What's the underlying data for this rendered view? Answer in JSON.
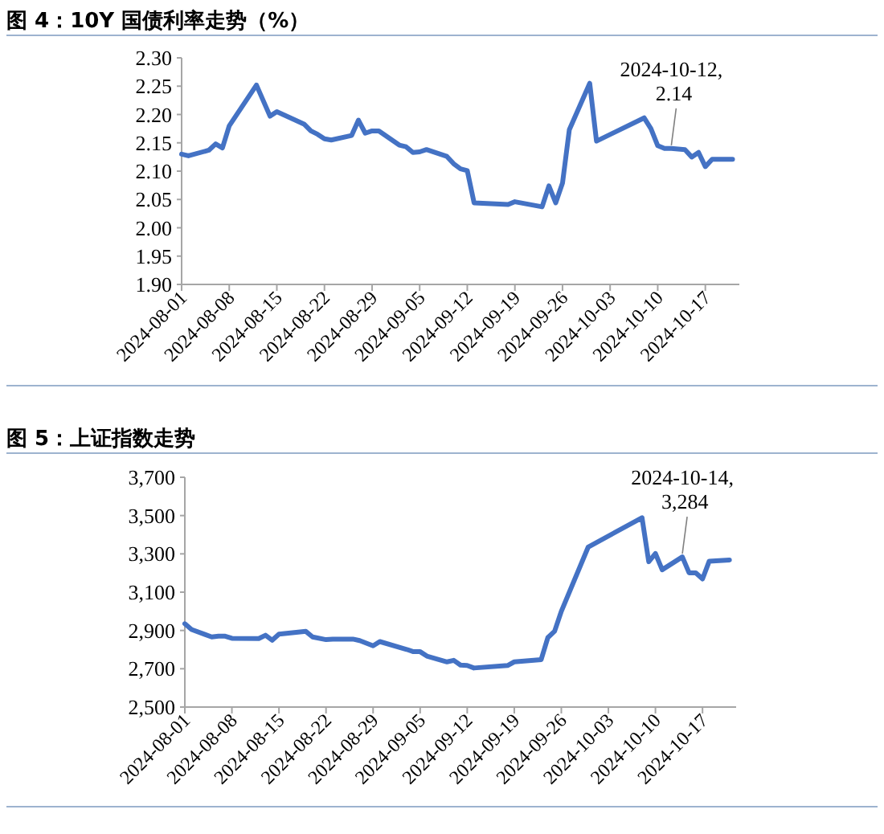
{
  "chart_data": [
    {
      "type": "line",
      "title": "图 4：10Y 国债利率走势（%）",
      "x": [
        "2024-08-01",
        "2024-08-02",
        "2024-08-05",
        "2024-08-06",
        "2024-08-07",
        "2024-08-08",
        "2024-08-12",
        "2024-08-14",
        "2024-08-15",
        "2024-08-19",
        "2024-08-20",
        "2024-08-21",
        "2024-08-22",
        "2024-08-23",
        "2024-08-26",
        "2024-08-27",
        "2024-08-28",
        "2024-08-29",
        "2024-08-30",
        "2024-09-02",
        "2024-09-03",
        "2024-09-04",
        "2024-09-05",
        "2024-09-06",
        "2024-09-09",
        "2024-09-10",
        "2024-09-11",
        "2024-09-12",
        "2024-09-13",
        "2024-09-18",
        "2024-09-19",
        "2024-09-23",
        "2024-09-24",
        "2024-09-25",
        "2024-09-26",
        "2024-09-27",
        "2024-09-30",
        "2024-10-01",
        "2024-10-08",
        "2024-10-09",
        "2024-10-10",
        "2024-10-11",
        "2024-10-12",
        "2024-10-14",
        "2024-10-15",
        "2024-10-16",
        "2024-10-17",
        "2024-10-18",
        "2024-10-21"
      ],
      "series": [
        {
          "color": "#4472c4",
          "values": [
            2.13,
            2.127,
            2.137,
            2.148,
            2.141,
            2.18,
            2.252,
            2.197,
            2.205,
            2.183,
            2.171,
            2.165,
            2.157,
            2.155,
            2.163,
            2.19,
            2.167,
            2.171,
            2.171,
            2.146,
            2.143,
            2.133,
            2.134,
            2.138,
            2.126,
            2.113,
            2.104,
            2.101,
            2.044,
            2.041,
            2.046,
            2.037,
            2.074,
            2.044,
            2.079,
            2.173,
            2.255,
            2.153,
            2.194,
            2.175,
            2.145,
            2.14,
            2.14,
            2.138,
            2.125,
            2.133,
            2.108,
            2.121,
            2.121
          ]
        }
      ],
      "xlim": [
        "2024-08-01",
        "2024-10-22"
      ],
      "xticks": [
        "2024-08-01",
        "2024-08-08",
        "2024-08-15",
        "2024-08-22",
        "2024-08-29",
        "2024-09-05",
        "2024-09-12",
        "2024-09-19",
        "2024-09-26",
        "2024-10-03",
        "2024-10-10",
        "2024-10-17"
      ],
      "ylim": [
        1.9,
        2.3
      ],
      "yticks": [
        {
          "value": 1.9,
          "label": "1.90"
        },
        {
          "value": 1.95,
          "label": "1.95"
        },
        {
          "value": 2.0,
          "label": "2.00"
        },
        {
          "value": 2.05,
          "label": "2.05"
        },
        {
          "value": 2.1,
          "label": "2.10"
        },
        {
          "value": 2.15,
          "label": "2.15"
        },
        {
          "value": 2.2,
          "label": "2.20"
        },
        {
          "value": 2.25,
          "label": "2.25"
        },
        {
          "value": 2.3,
          "label": "2.30"
        }
      ],
      "annotations": [
        {
          "text": "2024-10-12, 2.14",
          "x": "2024-10-12",
          "y": 2.14
        }
      ],
      "grid": false,
      "marker": "none",
      "line_style": "solid"
    },
    {
      "type": "line",
      "title": "图 5：上证指数走势",
      "x": [
        "2024-08-01",
        "2024-08-02",
        "2024-08-05",
        "2024-08-06",
        "2024-08-07",
        "2024-08-08",
        "2024-08-12",
        "2024-08-13",
        "2024-08-14",
        "2024-08-15",
        "2024-08-19",
        "2024-08-20",
        "2024-08-22",
        "2024-08-23",
        "2024-08-26",
        "2024-08-27",
        "2024-08-29",
        "2024-08-30",
        "2024-09-03",
        "2024-09-04",
        "2024-09-05",
        "2024-09-06",
        "2024-09-09",
        "2024-09-10",
        "2024-09-11",
        "2024-09-12",
        "2024-09-13",
        "2024-09-18",
        "2024-09-19",
        "2024-09-23",
        "2024-09-24",
        "2024-09-25",
        "2024-09-26",
        "2024-09-30",
        "2024-10-08",
        "2024-10-09",
        "2024-10-10",
        "2024-10-11",
        "2024-10-14",
        "2024-10-15",
        "2024-10-16",
        "2024-10-17",
        "2024-10-18",
        "2024-10-21"
      ],
      "series": [
        {
          "color": "#4472c4",
          "values": [
            2935,
            2905,
            2866,
            2870,
            2870,
            2859,
            2858,
            2875,
            2849,
            2881,
            2895,
            2866,
            2852,
            2855,
            2855,
            2847,
            2820,
            2842,
            2801,
            2789,
            2789,
            2766,
            2736,
            2744,
            2719,
            2717,
            2704,
            2717,
            2736,
            2748,
            2863,
            2896,
            3000,
            3336,
            3489,
            3259,
            3302,
            3217,
            3284,
            3201,
            3201,
            3169,
            3262,
            3268
          ]
        }
      ],
      "xlim": [
        "2024-08-01",
        "2024-10-22"
      ],
      "xticks": [
        "2024-08-01",
        "2024-08-08",
        "2024-08-15",
        "2024-08-22",
        "2024-08-29",
        "2024-09-05",
        "2024-09-12",
        "2024-09-19",
        "2024-09-26",
        "2024-10-03",
        "2024-10-10",
        "2024-10-17"
      ],
      "ylim": [
        2500,
        3700
      ],
      "yticks": [
        {
          "value": 2500,
          "label": "2,500"
        },
        {
          "value": 2700,
          "label": "2,700"
        },
        {
          "value": 2900,
          "label": "2,900"
        },
        {
          "value": 3100,
          "label": "3,100"
        },
        {
          "value": 3300,
          "label": "3,300"
        },
        {
          "value": 3500,
          "label": "3,500"
        },
        {
          "value": 3700,
          "label": "3,700"
        }
      ],
      "annotations": [
        {
          "text": "2024-10-14, 3,284",
          "x": "2024-10-14",
          "y": 3284
        }
      ],
      "grid": false,
      "marker": "none",
      "line_style": "solid"
    }
  ]
}
